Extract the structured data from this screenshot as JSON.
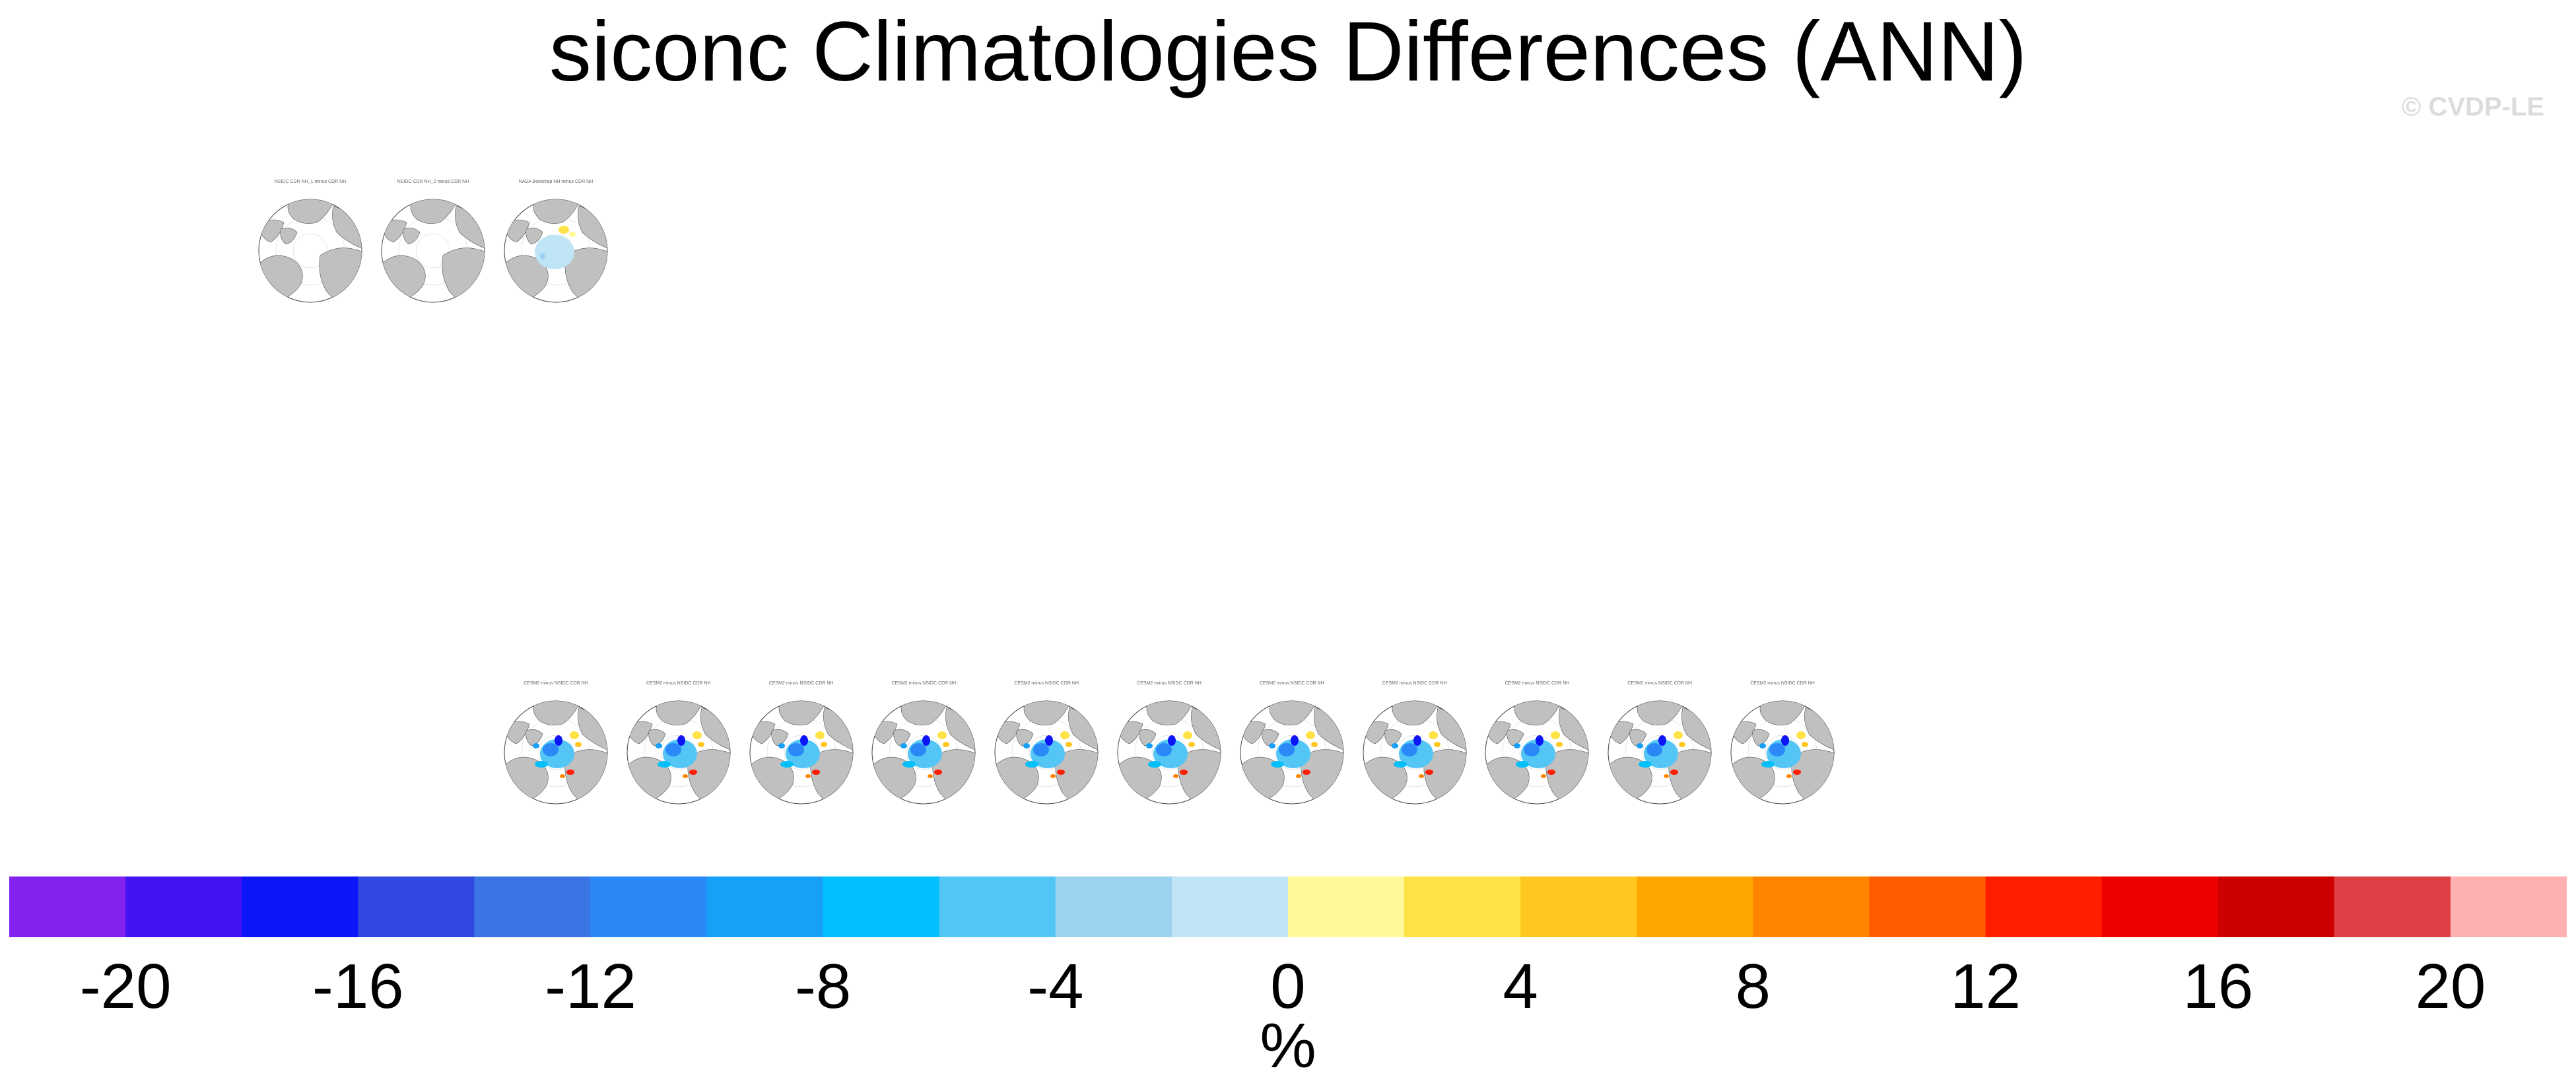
{
  "title": "siconc Climatologies Differences (ANN)",
  "watermark": "© CVDP-LE",
  "colors": {
    "land": "#c0c0c0",
    "ocean": "#ffffff",
    "coast": "#555555"
  },
  "chart_data": {
    "type": "heatmap",
    "title": "siconc Climatologies Differences (ANN)",
    "projection": "polar-stereographic (north)",
    "panel_rows": [
      {
        "name": "reference",
        "panels": [
          {
            "title": "NSIDC CDR NH_1 minus CDR NH",
            "style": "ref-land"
          },
          {
            "title": "NSIDC CDR NH_2 minus CDR NH",
            "style": "ref-land"
          },
          {
            "title": "NASA Bootstrap NH minus CDR NH",
            "style": "ref-diff"
          }
        ]
      },
      {
        "name": "ensemble",
        "panels": [
          {
            "title": "CESM2 minus NSIDC CDR NH",
            "style": "model-diff"
          },
          {
            "title": "CESM2 minus NSIDC CDR NH",
            "style": "model-diff"
          },
          {
            "title": "CESM2 minus NSIDC CDR NH",
            "style": "model-diff"
          },
          {
            "title": "CESM2 minus NSIDC CDR NH",
            "style": "model-diff"
          },
          {
            "title": "CESM2 minus NSIDC CDR NH",
            "style": "model-diff"
          },
          {
            "title": "CESM2 minus NSIDC CDR NH",
            "style": "model-diff"
          },
          {
            "title": "CESM2 minus NSIDC CDR NH",
            "style": "model-diff"
          },
          {
            "title": "CESM2 minus NSIDC CDR NH",
            "style": "model-diff"
          },
          {
            "title": "CESM2 minus NSIDC CDR NH",
            "style": "model-diff"
          },
          {
            "title": "CESM2 minus NSIDC CDR NH",
            "style": "model-diff"
          },
          {
            "title": "CESM2 minus NSIDC CDR NH",
            "style": "model-diff"
          }
        ]
      }
    ],
    "colorbar": {
      "units": "%",
      "range": [
        -22,
        22
      ],
      "bin_width": 2,
      "tick_values": [
        -20,
        -16,
        -12,
        -8,
        -4,
        0,
        4,
        8,
        12,
        16,
        20
      ],
      "tick_labels": [
        "-20",
        "-16",
        "-12",
        "-8",
        "-4",
        "0",
        "4",
        "8",
        "12",
        "16",
        "20"
      ],
      "colors": [
        "#8222ee",
        "#4313f6",
        "#0c16f6",
        "#3148e0",
        "#3b74e3",
        "#2a89f6",
        "#17a1f6",
        "#01c0fd",
        "#53c6f5",
        "#9dd3ee",
        "#bee4f5",
        "#fff99a",
        "#ffe346",
        "#ffc71f",
        "#ffa600",
        "#ff8500",
        "#ff5c00",
        "#ff1e00",
        "#ee0000",
        "#cc0000",
        "#de4045",
        "#ffb0b0"
      ]
    }
  }
}
